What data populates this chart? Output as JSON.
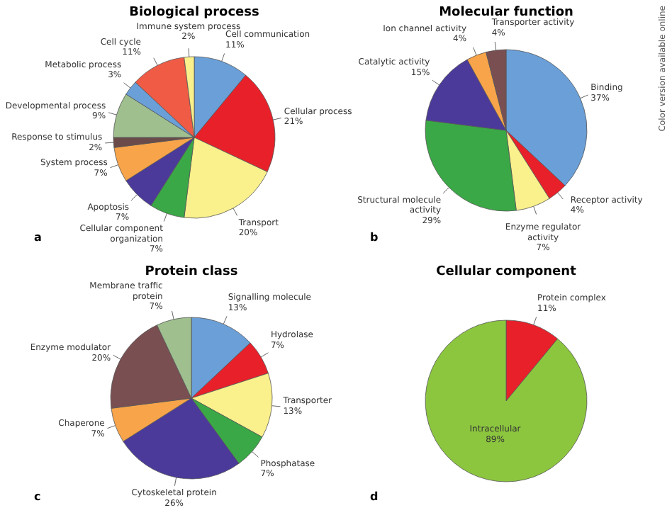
{
  "chart_data": [
    {
      "type": "pie",
      "title": "Biological process",
      "categories": [
        "Cell communication",
        "Cellular process",
        "Transport",
        "Cellular component organization",
        "Apoptosis",
        "System process",
        "Response to stimulus",
        "Developmental process",
        "Metabolic process",
        "Cell cycle",
        "Immune system process"
      ],
      "values": [
        11,
        21,
        20,
        7,
        7,
        7,
        2,
        9,
        3,
        11,
        2
      ],
      "value_labels": [
        "11%",
        "21%",
        "20%",
        "7%",
        "7%",
        "7%",
        "2%",
        "9%",
        "3%",
        "11%",
        "2%"
      ],
      "colors": [
        "#6a9fd8",
        "#e8202a",
        "#faf08c",
        "#3aa846",
        "#4b3a9a",
        "#f7a44a",
        "#6b4a4a",
        "#9fbf8f",
        "#6a9fd8",
        "#ef5b45",
        "#faf08c"
      ],
      "annotations": [
        "a"
      ]
    },
    {
      "type": "pie",
      "title": "Molecular function",
      "categories": [
        "Binding",
        "Receptor activity",
        "Enzyme regulator activity",
        "Structural molecule activity",
        "Catalytic activity",
        "Ion channel activity",
        "Transporter activity"
      ],
      "values": [
        37,
        4,
        7,
        29,
        15,
        4,
        4
      ],
      "value_labels": [
        "37%",
        "4%",
        "7%",
        "29%",
        "15%",
        "4%",
        "4%"
      ],
      "colors": [
        "#6a9fd8",
        "#e8202a",
        "#faf08c",
        "#3aa846",
        "#4b3a9a",
        "#f7a44a",
        "#7a4f52"
      ],
      "annotations": [
        "b",
        "Color version available online"
      ]
    },
    {
      "type": "pie",
      "title": "Protein class",
      "categories": [
        "Signalling molecule",
        "Hydrolase",
        "Transporter",
        "Phosphatase",
        "Cytoskeletal protein",
        "Chaperone",
        "Enzyme modulator",
        "Membrane traffic protein"
      ],
      "values": [
        13,
        7,
        13,
        7,
        26,
        7,
        20,
        7
      ],
      "value_labels": [
        "13%",
        "7%",
        "13%",
        "7%",
        "26%",
        "7%",
        "20%",
        "7%"
      ],
      "colors": [
        "#6a9fd8",
        "#e8202a",
        "#faf08c",
        "#3aa846",
        "#4b3a9a",
        "#f7a44a",
        "#7a4f52",
        "#9fbf8f"
      ],
      "annotations": [
        "c"
      ]
    },
    {
      "type": "pie",
      "title": "Cellular component",
      "categories": [
        "Protein complex",
        "Intracellular"
      ],
      "values": [
        11,
        89
      ],
      "value_labels": [
        "11%",
        "89%"
      ],
      "colors": [
        "#e8202a",
        "#8cc63f"
      ],
      "annotations": [
        "d"
      ]
    }
  ]
}
